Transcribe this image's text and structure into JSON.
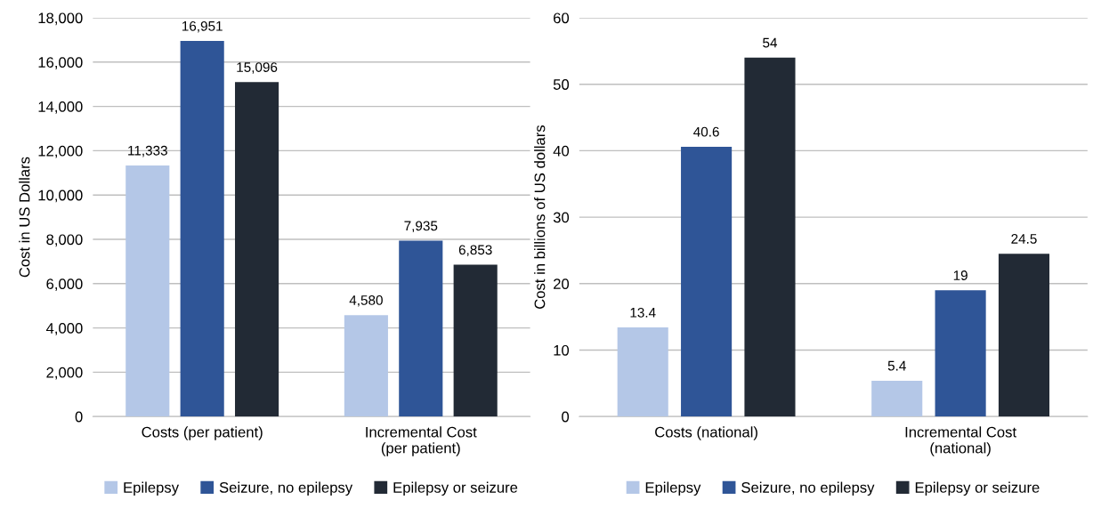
{
  "chart_data": [
    {
      "type": "bar",
      "ylabel": "Cost in US Dollars",
      "categories": [
        "Costs (per patient)",
        "Incremental Cost\n(per patient)"
      ],
      "series": [
        {
          "name": "Epilepsy",
          "color": "#b4c7e7",
          "values": [
            11333,
            4580
          ],
          "value_labels": [
            "11,333",
            "4,580"
          ]
        },
        {
          "name": "Seizure, no epilepsy",
          "color": "#2f5597",
          "values": [
            16951,
            7935
          ],
          "value_labels": [
            "16,951",
            "7,935"
          ]
        },
        {
          "name": "Epilepsy or seizure",
          "color": "#222a35",
          "values": [
            15096,
            6853
          ],
          "value_labels": [
            "15,096",
            "6,853"
          ]
        }
      ],
      "ylim": [
        0,
        18000
      ],
      "yticks": [
        0,
        {
          "value": 2000,
          "label": "2,000"
        },
        {
          "value": 4000,
          "label": "4,000"
        },
        {
          "value": 6000,
          "label": "6,000"
        },
        {
          "value": 8000,
          "label": "8,000"
        },
        {
          "value": 10000,
          "label": "10,000"
        },
        {
          "value": 12000,
          "label": "12,000"
        },
        {
          "value": 14000,
          "label": "14,000"
        },
        {
          "value": 16000,
          "label": "16,000"
        },
        {
          "value": 18000,
          "label": "18,000"
        }
      ],
      "grid": "y",
      "legend": "bottom"
    },
    {
      "type": "bar",
      "ylabel": "Cost in billions of US dollars",
      "categories": [
        "Costs (national)",
        "Incremental Cost\n(national)"
      ],
      "series": [
        {
          "name": "Epilepsy",
          "color": "#b4c7e7",
          "values": [
            13.4,
            5.4
          ]
        },
        {
          "name": "Seizure, no epilepsy",
          "color": "#2f5597",
          "values": [
            40.6,
            19
          ]
        },
        {
          "name": "Epilepsy or seizure",
          "color": "#222a35",
          "values": [
            54,
            24.5
          ]
        }
      ],
      "ylim": [
        0,
        60
      ],
      "yticks": [
        0,
        10,
        20,
        30,
        40,
        50,
        60
      ],
      "grid": "y",
      "legend": "bottom",
      "data_labels": true
    }
  ]
}
